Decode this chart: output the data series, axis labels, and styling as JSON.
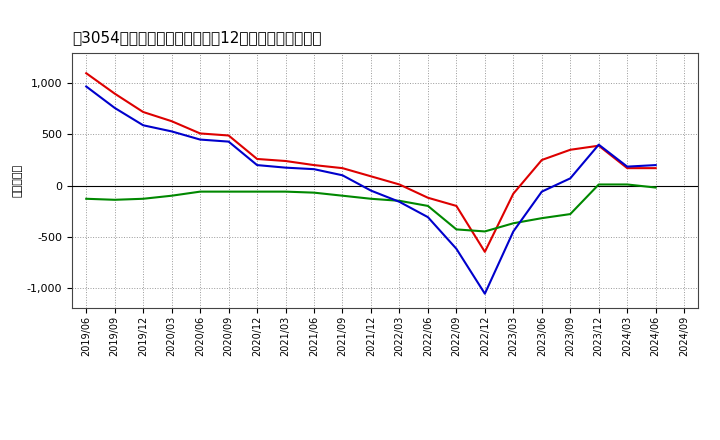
{
  "title": "　3054、キャッシュフローの12か月移動合計の推移",
  "title_bracket": "［3054］",
  "title_main": "キャッシュフローの12か月移動合計の推移",
  "ylabel": "（百万円）",
  "background_color": "#ffffff",
  "grid_color": "#999999",
  "x_labels": [
    "2019/06",
    "2019/09",
    "2019/12",
    "2020/03",
    "2020/06",
    "2020/09",
    "2020/12",
    "2021/03",
    "2021/06",
    "2021/09",
    "2021/12",
    "2022/03",
    "2022/06",
    "2022/09",
    "2022/12",
    "2023/03",
    "2023/06",
    "2023/09",
    "2023/12",
    "2024/03",
    "2024/06",
    "2024/09"
  ],
  "operating_cf": [
    1100,
    900,
    720,
    630,
    510,
    490,
    260,
    240,
    200,
    170,
    90,
    10,
    -120,
    -200,
    -650,
    -80,
    250,
    350,
    390,
    170,
    170,
    null
  ],
  "investing_cf": [
    -130,
    -140,
    -130,
    -100,
    -60,
    -60,
    -60,
    -60,
    -70,
    -100,
    -130,
    -150,
    -200,
    -430,
    -450,
    -370,
    -320,
    -280,
    10,
    10,
    -20,
    null
  ],
  "free_cf": [
    970,
    760,
    590,
    530,
    450,
    430,
    200,
    175,
    160,
    100,
    -50,
    -160,
    -310,
    -620,
    -1060,
    -450,
    -60,
    70,
    400,
    185,
    200,
    null
  ],
  "ylim": [
    -1200,
    1300
  ],
  "yticks": [
    -1000,
    -500,
    0,
    500,
    1000
  ],
  "line_colors": {
    "operating": "#dd0000",
    "investing": "#008800",
    "free": "#0000cc"
  },
  "linewidth": 1.5,
  "title_fontsize": 11,
  "axis_fontsize": 8,
  "tick_fontsize": 7,
  "legend_fontsize": 9
}
